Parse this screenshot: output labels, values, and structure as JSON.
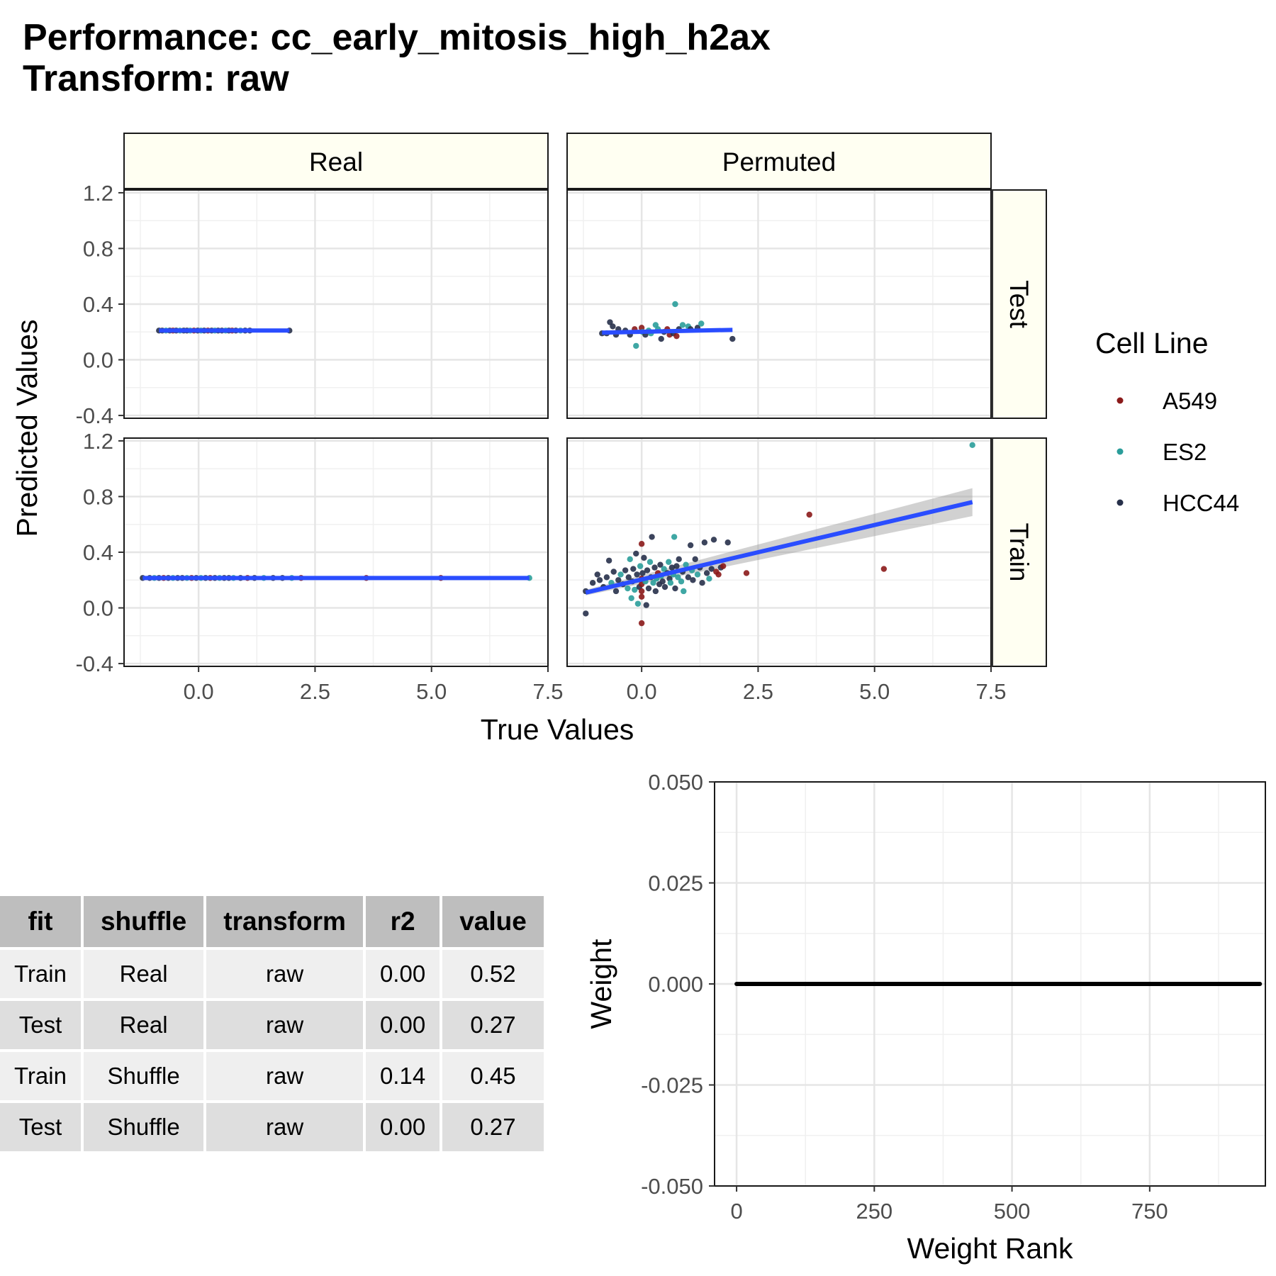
{
  "title_line1": "Performance: cc_early_mitosis_high_h2ax",
  "title_line2": "Transform: raw",
  "colors": {
    "A549": "#8b1a1a",
    "ES2": "#2a9d9a",
    "HCC44": "#27304a",
    "fit_line": "#2a4dff",
    "strip_fill": "#fffff2",
    "grid": "#e5e5e5"
  },
  "chart_data": [
    {
      "type": "scatter",
      "facet_columns": [
        "Real",
        "Permuted"
      ],
      "facet_rows": [
        "Test",
        "Train"
      ],
      "xlabel": "True Values",
      "ylabel": "Predicted Values",
      "xlim": [
        -1.6,
        7.5
      ],
      "ylim": [
        -0.42,
        1.22
      ],
      "x_ticks": [
        "0.0",
        "2.5",
        "5.0",
        "7.5"
      ],
      "x_tick_values": [
        0,
        2.5,
        5,
        7.5
      ],
      "y_ticks": [
        "-0.4",
        "0.0",
        "0.4",
        "0.8",
        "1.2"
      ],
      "y_tick_values": [
        -0.4,
        0,
        0.4,
        0.8,
        1.2
      ],
      "legend": {
        "title": "Cell Line",
        "entries": [
          "A549",
          "ES2",
          "HCC44"
        ],
        "placement": "right"
      },
      "panels": [
        {
          "column": "Real",
          "row": "Test",
          "fit": {
            "x": [
              -0.85,
              1.95
            ],
            "y": [
              0.21,
              0.21
            ]
          },
          "points": [
            [
              -0.85,
              0.21,
              "HCC44"
            ],
            [
              -0.78,
              0.21,
              "HCC44"
            ],
            [
              -0.7,
              0.21,
              "ES2"
            ],
            [
              -0.62,
              0.21,
              "HCC44"
            ],
            [
              -0.55,
              0.21,
              "A549"
            ],
            [
              -0.48,
              0.21,
              "HCC44"
            ],
            [
              -0.4,
              0.21,
              "ES2"
            ],
            [
              -0.32,
              0.21,
              "HCC44"
            ],
            [
              -0.25,
              0.21,
              "HCC44"
            ],
            [
              -0.18,
              0.21,
              "ES2"
            ],
            [
              -0.1,
              0.21,
              "A549"
            ],
            [
              -0.02,
              0.21,
              "HCC44"
            ],
            [
              0.05,
              0.21,
              "ES2"
            ],
            [
              0.12,
              0.21,
              "HCC44"
            ],
            [
              0.2,
              0.21,
              "A549"
            ],
            [
              0.28,
              0.21,
              "HCC44"
            ],
            [
              0.35,
              0.21,
              "ES2"
            ],
            [
              0.42,
              0.21,
              "HCC44"
            ],
            [
              0.5,
              0.21,
              "HCC44"
            ],
            [
              0.58,
              0.21,
              "ES2"
            ],
            [
              0.65,
              0.21,
              "HCC44"
            ],
            [
              0.72,
              0.21,
              "A549"
            ],
            [
              0.8,
              0.21,
              "HCC44"
            ],
            [
              0.9,
              0.21,
              "ES2"
            ],
            [
              1.0,
              0.21,
              "HCC44"
            ],
            [
              1.1,
              0.21,
              "HCC44"
            ],
            [
              1.95,
              0.21,
              "HCC44"
            ]
          ]
        },
        {
          "column": "Permuted",
          "row": "Test",
          "fit": {
            "x": [
              -0.85,
              1.95
            ],
            "y": [
              0.195,
              0.215
            ]
          },
          "points": [
            [
              -0.85,
              0.19,
              "HCC44"
            ],
            [
              -0.75,
              0.19,
              "HCC44"
            ],
            [
              -0.68,
              0.27,
              "HCC44"
            ],
            [
              -0.62,
              0.24,
              "HCC44"
            ],
            [
              -0.55,
              0.18,
              "HCC44"
            ],
            [
              -0.5,
              0.22,
              "HCC44"
            ],
            [
              -0.35,
              0.21,
              "HCC44"
            ],
            [
              -0.25,
              0.18,
              "HCC44"
            ],
            [
              -0.15,
              0.22,
              "A549"
            ],
            [
              -0.12,
              0.1,
              "ES2"
            ],
            [
              0.0,
              0.23,
              "A549"
            ],
            [
              0.02,
              0.2,
              "ES2"
            ],
            [
              0.08,
              0.18,
              "HCC44"
            ],
            [
              0.15,
              0.21,
              "ES2"
            ],
            [
              0.2,
              0.19,
              "ES2"
            ],
            [
              0.3,
              0.25,
              "ES2"
            ],
            [
              0.35,
              0.22,
              "ES2"
            ],
            [
              0.42,
              0.15,
              "HCC44"
            ],
            [
              0.48,
              0.2,
              "HCC44"
            ],
            [
              0.55,
              0.22,
              "A549"
            ],
            [
              0.6,
              0.18,
              "A549"
            ],
            [
              0.68,
              0.19,
              "HCC44"
            ],
            [
              0.72,
              0.4,
              "ES2"
            ],
            [
              0.75,
              0.17,
              "A549"
            ],
            [
              0.8,
              0.22,
              "HCC44"
            ],
            [
              0.88,
              0.25,
              "ES2"
            ],
            [
              1.0,
              0.24,
              "ES2"
            ],
            [
              1.05,
              0.22,
              "HCC44"
            ],
            [
              1.2,
              0.23,
              "HCC44"
            ],
            [
              1.28,
              0.26,
              "ES2"
            ],
            [
              1.95,
              0.15,
              "HCC44"
            ]
          ]
        },
        {
          "column": "Real",
          "row": "Train",
          "fit": {
            "x": [
              -1.2,
              7.1
            ],
            "y": [
              0.215,
              0.215
            ]
          },
          "points": [
            [
              -1.2,
              0.215,
              "HCC44"
            ],
            [
              -1.05,
              0.215,
              "HCC44"
            ],
            [
              -0.95,
              0.215,
              "ES2"
            ],
            [
              -0.85,
              0.215,
              "HCC44"
            ],
            [
              -0.75,
              0.215,
              "A549"
            ],
            [
              -0.65,
              0.215,
              "HCC44"
            ],
            [
              -0.55,
              0.215,
              "ES2"
            ],
            [
              -0.45,
              0.215,
              "HCC44"
            ],
            [
              -0.35,
              0.215,
              "HCC44"
            ],
            [
              -0.25,
              0.215,
              "ES2"
            ],
            [
              -0.15,
              0.215,
              "A549"
            ],
            [
              -0.05,
              0.215,
              "HCC44"
            ],
            [
              0.05,
              0.215,
              "ES2"
            ],
            [
              0.15,
              0.215,
              "HCC44"
            ],
            [
              0.25,
              0.215,
              "A549"
            ],
            [
              0.35,
              0.215,
              "HCC44"
            ],
            [
              0.45,
              0.215,
              "ES2"
            ],
            [
              0.55,
              0.215,
              "HCC44"
            ],
            [
              0.65,
              0.215,
              "HCC44"
            ],
            [
              0.75,
              0.215,
              "ES2"
            ],
            [
              0.9,
              0.215,
              "HCC44"
            ],
            [
              1.05,
              0.215,
              "A549"
            ],
            [
              1.2,
              0.215,
              "HCC44"
            ],
            [
              1.4,
              0.215,
              "ES2"
            ],
            [
              1.6,
              0.215,
              "HCC44"
            ],
            [
              1.8,
              0.215,
              "HCC44"
            ],
            [
              2.0,
              0.215,
              "ES2"
            ],
            [
              2.2,
              0.215,
              "A549"
            ],
            [
              3.6,
              0.215,
              "A549"
            ],
            [
              5.2,
              0.215,
              "A549"
            ],
            [
              7.1,
              0.215,
              "ES2"
            ]
          ]
        },
        {
          "column": "Permuted",
          "row": "Train",
          "fit": {
            "x": [
              -1.2,
              7.1
            ],
            "y": [
              0.11,
              0.76
            ],
            "band": [
              0.02,
              0.1
            ]
          },
          "points": [
            [
              -1.2,
              -0.04,
              "HCC44"
            ],
            [
              -1.2,
              0.12,
              "HCC44"
            ],
            [
              -1.05,
              0.18,
              "HCC44"
            ],
            [
              -0.95,
              0.24,
              "HCC44"
            ],
            [
              -0.9,
              0.2,
              "HCC44"
            ],
            [
              -0.82,
              0.15,
              "HCC44"
            ],
            [
              -0.75,
              0.22,
              "HCC44"
            ],
            [
              -0.7,
              0.34,
              "HCC44"
            ],
            [
              -0.65,
              0.18,
              "ES2"
            ],
            [
              -0.6,
              0.26,
              "HCC44"
            ],
            [
              -0.55,
              0.12,
              "HCC44"
            ],
            [
              -0.5,
              0.2,
              "HCC44"
            ],
            [
              -0.45,
              0.24,
              "ES2"
            ],
            [
              -0.4,
              0.17,
              "HCC44"
            ],
            [
              -0.35,
              0.27,
              "HCC44"
            ],
            [
              -0.3,
              0.14,
              "ES2"
            ],
            [
              -0.28,
              0.22,
              "HCC44"
            ],
            [
              -0.25,
              0.35,
              "ES2"
            ],
            [
              -0.22,
              0.07,
              "ES2"
            ],
            [
              -0.2,
              0.19,
              "HCC44"
            ],
            [
              -0.18,
              0.28,
              "HCC44"
            ],
            [
              -0.15,
              0.13,
              "ES2"
            ],
            [
              -0.12,
              0.39,
              "HCC44"
            ],
            [
              -0.1,
              0.24,
              "HCC44"
            ],
            [
              -0.08,
              0.03,
              "ES2"
            ],
            [
              -0.05,
              0.15,
              "HCC44"
            ],
            [
              -0.03,
              0.3,
              "ES2"
            ],
            [
              0.0,
              0.21,
              "A549"
            ],
            [
              0.0,
              0.12,
              "A549"
            ],
            [
              0.0,
              0.08,
              "A549"
            ],
            [
              0.0,
              0.46,
              "A549"
            ],
            [
              0.0,
              -0.11,
              "A549"
            ],
            [
              0.0,
              0.17,
              "A549"
            ],
            [
              0.02,
              0.25,
              "HCC44"
            ],
            [
              0.05,
              0.36,
              "HCC44"
            ],
            [
              0.08,
              0.19,
              "ES2"
            ],
            [
              0.1,
              0.02,
              "HCC44"
            ],
            [
              0.12,
              0.27,
              "HCC44"
            ],
            [
              0.15,
              0.14,
              "HCC44"
            ],
            [
              0.18,
              0.33,
              "ES2"
            ],
            [
              0.2,
              0.22,
              "HCC44"
            ],
            [
              0.22,
              0.51,
              "HCC44"
            ],
            [
              0.25,
              0.18,
              "ES2"
            ],
            [
              0.28,
              0.29,
              "HCC44"
            ],
            [
              0.3,
              0.12,
              "HCC44"
            ],
            [
              0.32,
              0.21,
              "ES2"
            ],
            [
              0.35,
              0.25,
              "A549"
            ],
            [
              0.38,
              0.17,
              "HCC44"
            ],
            [
              0.4,
              0.31,
              "HCC44"
            ],
            [
              0.42,
              0.23,
              "ES2"
            ],
            [
              0.45,
              0.19,
              "HCC44"
            ],
            [
              0.48,
              0.28,
              "ES2"
            ],
            [
              0.5,
              0.15,
              "HCC44"
            ],
            [
              0.55,
              0.25,
              "HCC44"
            ],
            [
              0.58,
              0.33,
              "ES2"
            ],
            [
              0.6,
              0.21,
              "HCC44"
            ],
            [
              0.62,
              0.18,
              "ES2"
            ],
            [
              0.65,
              0.29,
              "HCC44"
            ],
            [
              0.68,
              0.24,
              "ES2"
            ],
            [
              0.7,
              0.51,
              "ES2"
            ],
            [
              0.72,
              0.14,
              "HCC44"
            ],
            [
              0.75,
              0.3,
              "HCC44"
            ],
            [
              0.78,
              0.22,
              "ES2"
            ],
            [
              0.8,
              0.35,
              "HCC44"
            ],
            [
              0.85,
              0.19,
              "ES2"
            ],
            [
              0.88,
              0.26,
              "HCC44"
            ],
            [
              0.9,
              0.12,
              "ES2"
            ],
            [
              0.95,
              0.31,
              "ES2"
            ],
            [
              1.0,
              0.22,
              "HCC44"
            ],
            [
              1.05,
              0.45,
              "HCC44"
            ],
            [
              1.08,
              0.27,
              "ES2"
            ],
            [
              1.1,
              0.2,
              "HCC44"
            ],
            [
              1.15,
              0.35,
              "HCC44"
            ],
            [
              1.2,
              0.24,
              "ES2"
            ],
            [
              1.25,
              0.29,
              "HCC44"
            ],
            [
              1.3,
              0.18,
              "HCC44"
            ],
            [
              1.35,
              0.47,
              "HCC44"
            ],
            [
              1.4,
              0.25,
              "HCC44"
            ],
            [
              1.45,
              0.21,
              "ES2"
            ],
            [
              1.5,
              0.28,
              "HCC44"
            ],
            [
              1.55,
              0.49,
              "HCC44"
            ],
            [
              1.6,
              0.26,
              "A549"
            ],
            [
              1.65,
              0.24,
              "A549"
            ],
            [
              1.7,
              0.29,
              "HCC44"
            ],
            [
              1.75,
              0.3,
              "A549"
            ],
            [
              1.85,
              0.47,
              "HCC44"
            ],
            [
              2.25,
              0.25,
              "A549"
            ],
            [
              3.6,
              0.67,
              "A549"
            ],
            [
              5.2,
              0.28,
              "A549"
            ],
            [
              7.1,
              1.17,
              "ES2"
            ]
          ]
        }
      ]
    },
    {
      "type": "line",
      "xlabel": "Weight Rank",
      "ylabel": "Weight",
      "xlim": [
        -40,
        960
      ],
      "ylim": [
        -0.05,
        0.05
      ],
      "x_ticks": [
        "0",
        "250",
        "500",
        "750"
      ],
      "x_tick_values": [
        0,
        250,
        500,
        750
      ],
      "y_ticks": [
        "-0.050",
        "-0.025",
        "0.000",
        "0.025",
        "0.050"
      ],
      "y_tick_values": [
        -0.05,
        -0.025,
        0,
        0.025,
        0.05
      ],
      "x": [
        0,
        950
      ],
      "y": [
        0,
        0
      ]
    }
  ],
  "table": {
    "headers": [
      "fit",
      "shuffle",
      "transform",
      "r2",
      "value"
    ],
    "rows": [
      [
        "Train",
        "Real",
        "raw",
        "0.00",
        "0.52"
      ],
      [
        "Test",
        "Real",
        "raw",
        "0.00",
        "0.27"
      ],
      [
        "Train",
        "Shuffle",
        "raw",
        "0.14",
        "0.45"
      ],
      [
        "Test",
        "Shuffle",
        "raw",
        "0.00",
        "0.27"
      ]
    ]
  }
}
